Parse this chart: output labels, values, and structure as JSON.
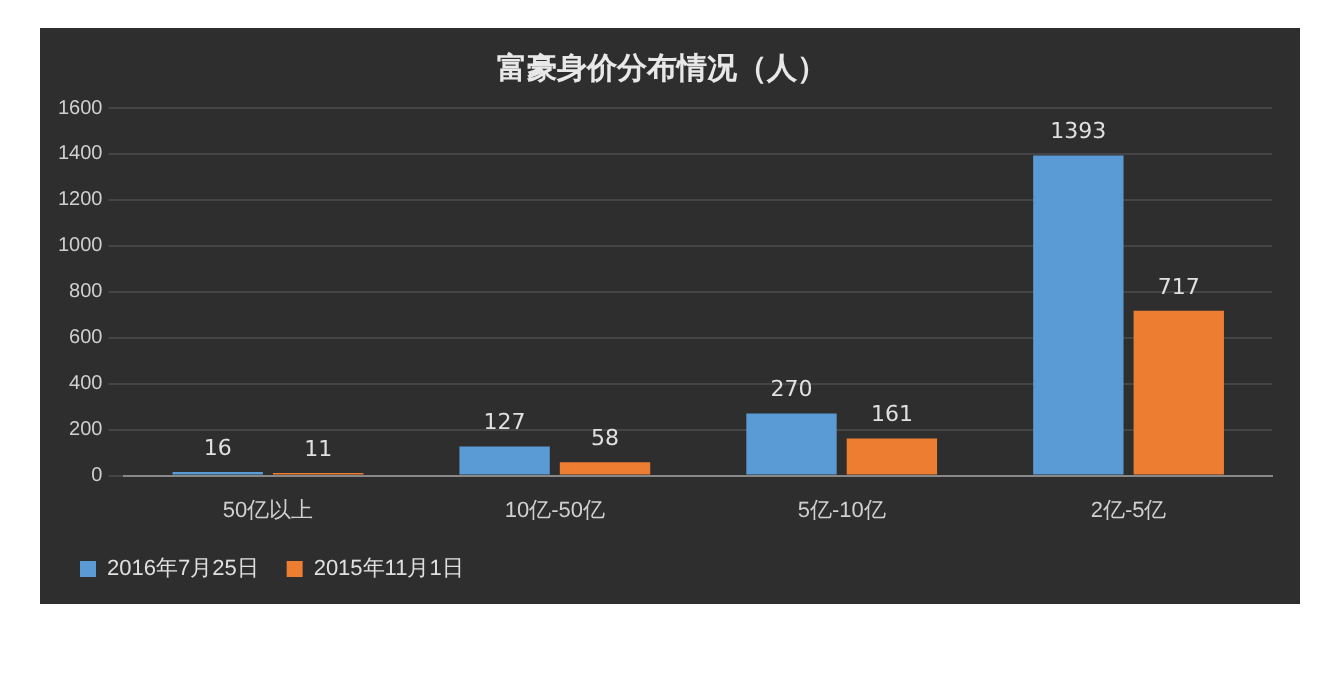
{
  "chart_data": {
    "type": "bar",
    "title": "富豪身价分布情况（人）",
    "categories": [
      "50亿以上",
      "10亿-50亿",
      "5亿-10亿",
      "2亿-5亿"
    ],
    "series": [
      {
        "name": "2016年7月25日",
        "color": "#5b9bd5",
        "values": [
          16,
          127,
          270,
          1393
        ]
      },
      {
        "name": "2015年11月1日",
        "color": "#ed7d31",
        "values": [
          11,
          58,
          161,
          717
        ]
      }
    ],
    "ylim": [
      0,
      1600
    ],
    "yticks": [
      0,
      200,
      400,
      600,
      800,
      1000,
      1200,
      1400,
      1600
    ],
    "grid": "y",
    "legend": "bottom",
    "data_labels": true
  }
}
